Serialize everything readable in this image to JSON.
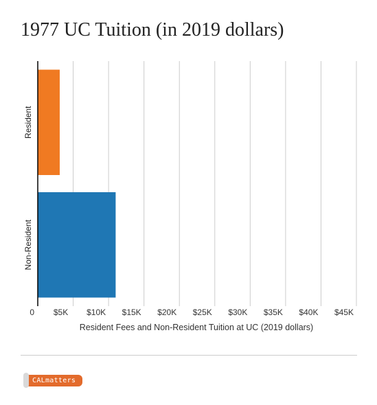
{
  "title": "1977 UC Tuition (in 2019 dollars)",
  "brand": {
    "logo_text": "CALmatters"
  },
  "colors": {
    "resident": "#f07a22",
    "non_resident": "#1f77b4",
    "grid": "#cccccc",
    "axis": "#000000"
  },
  "chart_data": {
    "type": "bar",
    "orientation": "horizontal",
    "title": "1977 UC Tuition (in 2019 dollars)",
    "categories": [
      "Resident",
      "Non-Resident"
    ],
    "values": [
      3100,
      11000
    ],
    "bar_colors": [
      "#f07a22",
      "#1f77b4"
    ],
    "xlabel": "Resident Fees and Non-Resident Tuition at UC (2019 dollars)",
    "ylabel": "",
    "xlim": [
      0,
      45000
    ],
    "xticks": [
      0,
      5000,
      10000,
      15000,
      20000,
      25000,
      30000,
      35000,
      40000,
      45000
    ],
    "xtick_labels": [
      "0",
      "$5K",
      "$10K",
      "$15K",
      "$20K",
      "$25K",
      "$30K",
      "$35K",
      "$40K",
      "$45K"
    ],
    "grid": true
  }
}
